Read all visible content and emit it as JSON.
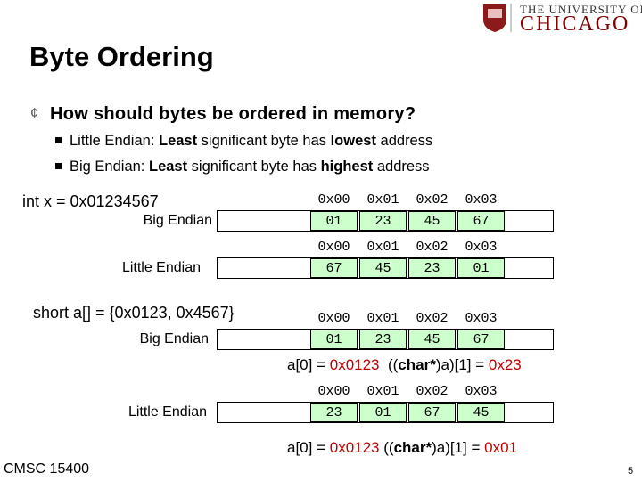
{
  "logo": {
    "line1": "THE UNIVERSITY OF",
    "line2": "CHICAGO"
  },
  "title": "Byte Ordering",
  "bullet": {
    "marker": "¢",
    "text": "How should bytes be ordered in memory?"
  },
  "sub_bullets": [
    {
      "runs": [
        {
          "text": "Little Endian: "
        },
        {
          "text": "Least",
          "bold": true
        },
        {
          "text": " significant byte has "
        },
        {
          "text": "lowest",
          "bold": true
        },
        {
          "text": " address"
        }
      ]
    },
    {
      "runs": [
        {
          "text": "Big Endian: "
        },
        {
          "text": "Least",
          "bold": true
        },
        {
          "text": " significant byte has "
        },
        {
          "text": "highest",
          "bold": true
        },
        {
          "text": " address"
        }
      ]
    }
  ],
  "declarations": [
    "int x = 0x01234567",
    "short a[] = {0x0123, 0x4567}"
  ],
  "rows": [
    {
      "label": "Big Endian",
      "addresses": [
        "0x00",
        "0x01",
        "0x02",
        "0x03"
      ],
      "bytes": [
        "01",
        "23",
        "45",
        "67"
      ]
    },
    {
      "label": "Little Endian",
      "addresses": [
        "0x00",
        "0x01",
        "0x02",
        "0x03"
      ],
      "bytes": [
        "67",
        "45",
        "23",
        "01"
      ]
    },
    {
      "label": "Big Endian",
      "addresses": [
        "0x00",
        "0x01",
        "0x02",
        "0x03"
      ],
      "bytes": [
        "01",
        "23",
        "45",
        "67"
      ],
      "note": [
        {
          "text": "a[0] = "
        },
        {
          "text": "0x0123",
          "color": "#c00000"
        },
        {
          "text": "  (("
        },
        {
          "text": "char*",
          "bold": true
        },
        {
          "text": ")a)[1] = "
        },
        {
          "text": "0x23",
          "color": "#c00000"
        }
      ]
    },
    {
      "label": "Little Endian",
      "addresses": [
        "0x00",
        "0x01",
        "0x02",
        "0x03"
      ],
      "bytes": [
        "23",
        "01",
        "67",
        "45"
      ],
      "note": [
        {
          "text": "a[0] = "
        },
        {
          "text": "0x0123",
          "color": "#c00000"
        },
        {
          "text": " (("
        },
        {
          "text": "char*",
          "bold": true
        },
        {
          "text": ")a)[1] = "
        },
        {
          "text": "0x01",
          "color": "#c00000"
        }
      ]
    }
  ],
  "footer": {
    "course": "CMSC 15400",
    "page": "5"
  }
}
